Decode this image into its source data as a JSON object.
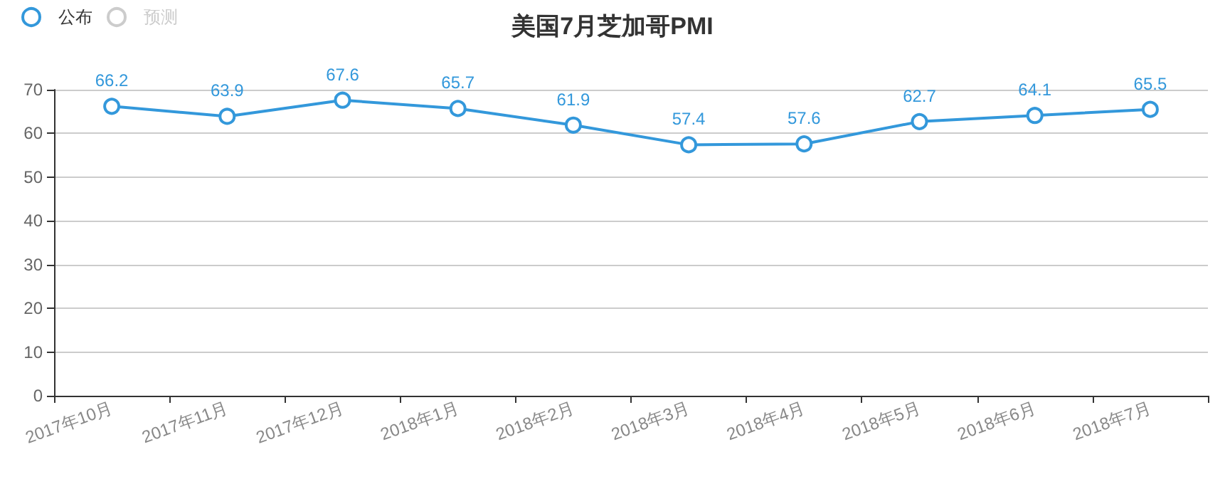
{
  "chart_data": {
    "type": "line",
    "title": "美国7月芝加哥PMI",
    "categories": [
      "2017年10月",
      "2017年11月",
      "2017年12月",
      "2018年1月",
      "2018年2月",
      "2018年3月",
      "2018年4月",
      "2018年5月",
      "2018年6月",
      "2018年7月"
    ],
    "series": [
      {
        "name": "公布",
        "color": "#3398db",
        "values": [
          66.2,
          63.9,
          67.6,
          65.7,
          61.9,
          57.4,
          57.6,
          62.7,
          64.1,
          65.5
        ]
      },
      {
        "name": "预测",
        "color": "#cccccc",
        "values": [
          null,
          null,
          null,
          null,
          null,
          null,
          null,
          null,
          null,
          null
        ]
      }
    ],
    "ylim": [
      0,
      70
    ],
    "yticks": [
      0,
      10,
      20,
      30,
      40,
      50,
      60,
      70
    ],
    "grid": "y",
    "legend": "top left",
    "marker": "circle",
    "line_style": "solid",
    "data_labels": true
  }
}
